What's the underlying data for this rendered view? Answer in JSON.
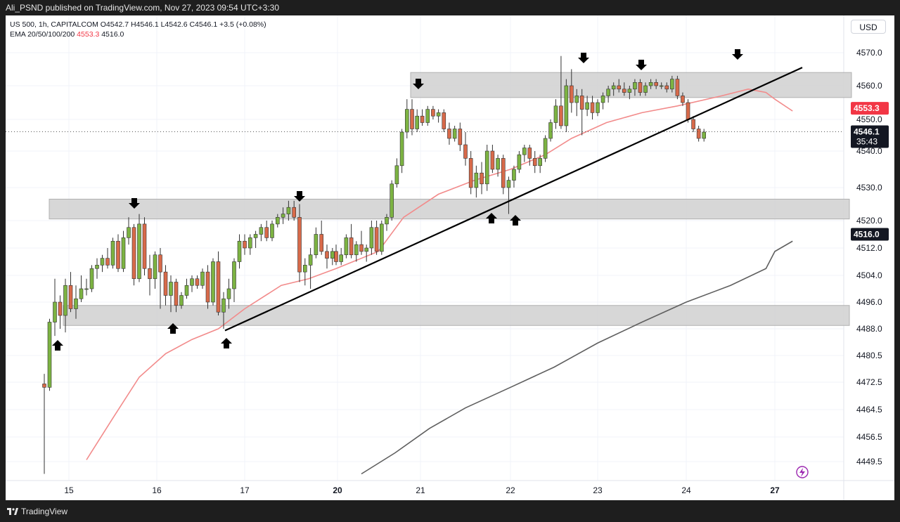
{
  "header": {
    "published": "Ali_PSND published on TradingView.com, Nov 27, 2023 09:54 UTC+3:30"
  },
  "legend": {
    "line1": "US 500, 1h, CAPITALCOM  O4542.7  H4546.1  L4542.6  C4546.1  +3.5 (+0.08%)",
    "ema_label": "EMA 20/50/100/200",
    "ema_value_1": "4553.3",
    "ema_value_2": "4516.0"
  },
  "currency_button": "USD",
  "footer": {
    "brand": "TradingView"
  },
  "colors": {
    "bull": "#7cb342",
    "bear": "#d86a4a",
    "ema_fast": "#f28b8b",
    "ema_slow": "#5f5f5f",
    "zone": "#d3d3d3",
    "price_tag": "#f23645"
  },
  "chart_data": {
    "type": "candlestick",
    "symbol": "US 500",
    "timeframe": "1h",
    "y_ticks": [
      "4570.0",
      "4560.0",
      "4550.0",
      "4540.0",
      "4530.0",
      "4520.0",
      "4512.0",
      "4504.0",
      "4496.0",
      "4488.0",
      "4480.5",
      "4472.5",
      "4464.5",
      "4456.5",
      "4449.5"
    ],
    "x_ticks": [
      "15",
      "16",
      "17",
      "20",
      "21",
      "22",
      "23",
      "24",
      "27"
    ],
    "ylim": [
      4446,
      4576
    ],
    "price_labels": [
      {
        "text": "4553.3",
        "value": 4553.3,
        "style": "red"
      },
      {
        "text": "4546.1",
        "value": 4546.1,
        "style": "dark",
        "sub": "35:43"
      },
      {
        "text": "4516.0",
        "value": 4516.0,
        "style": "dark"
      }
    ],
    "zones": [
      {
        "from": 4556.5,
        "to": 4564.0,
        "x_start": "20"
      },
      {
        "from": 4520.5,
        "to": 4526.5,
        "x_start": "15"
      },
      {
        "from": 4489.0,
        "to": 4495.0,
        "x_start": "15"
      }
    ],
    "trendline": {
      "from": [
        17,
        4487.5
      ],
      "to": [
        27.2,
        4565.5
      ]
    },
    "arrows_down": [
      [
        15.7,
        4522.5
      ],
      [
        17.6,
        4524.5
      ],
      [
        20.9,
        4557.5
      ],
      [
        22.8,
        4564.5
      ],
      [
        23.5,
        4562.0
      ],
      [
        24.6,
        4565.5
      ]
    ],
    "arrows_up": [
      [
        14.85,
        4486.5
      ],
      [
        16.2,
        4490.0
      ],
      [
        16.75,
        4487.0
      ],
      [
        21.8,
        4520.0
      ],
      [
        22.05,
        4519.5
      ]
    ],
    "ema_fast": [
      [
        15.2,
        4450
      ],
      [
        15.5,
        4462
      ],
      [
        15.8,
        4474
      ],
      [
        16.1,
        4481
      ],
      [
        16.4,
        4485
      ],
      [
        16.7,
        4488
      ],
      [
        17,
        4494
      ],
      [
        17.4,
        4501
      ],
      [
        17.7,
        4503
      ],
      [
        20,
        4506
      ],
      [
        20.5,
        4511
      ],
      [
        20.8,
        4521
      ],
      [
        21.2,
        4528
      ],
      [
        21.6,
        4532
      ],
      [
        22,
        4535
      ],
      [
        22.4,
        4539
      ],
      [
        22.7,
        4544
      ],
      [
        23.1,
        4549
      ],
      [
        23.5,
        4552
      ],
      [
        23.9,
        4554
      ],
      [
        24.4,
        4557
      ],
      [
        24.7,
        4559
      ],
      [
        24.9,
        4558
      ],
      [
        27,
        4556
      ],
      [
        27.2,
        4552.5
      ]
    ],
    "ema_slow": [
      [
        20.3,
        4446
      ],
      [
        20.7,
        4452
      ],
      [
        21.1,
        4459
      ],
      [
        21.5,
        4465
      ],
      [
        22,
        4471
      ],
      [
        22.5,
        4477
      ],
      [
        23,
        4484
      ],
      [
        23.5,
        4490
      ],
      [
        24,
        4496
      ],
      [
        24.5,
        4501
      ],
      [
        24.9,
        4506
      ],
      [
        27,
        4511
      ],
      [
        27.2,
        4514
      ]
    ],
    "candles": [
      {
        "x": 14.72,
        "o": 4472,
        "h": 4475,
        "l": 4446,
        "c": 4471
      },
      {
        "x": 14.78,
        "o": 4471,
        "h": 4491,
        "l": 4470,
        "c": 4490
      },
      {
        "x": 14.84,
        "o": 4490,
        "h": 4503,
        "l": 4486,
        "c": 4496
      },
      {
        "x": 14.9,
        "o": 4496,
        "h": 4498,
        "l": 4488,
        "c": 4492
      },
      {
        "x": 14.96,
        "o": 4492,
        "h": 4503,
        "l": 4487,
        "c": 4501
      },
      {
        "x": 15.02,
        "o": 4501,
        "h": 4505,
        "l": 4493,
        "c": 4494
      },
      {
        "x": 15.08,
        "o": 4494,
        "h": 4501,
        "l": 4491,
        "c": 4497
      },
      {
        "x": 15.14,
        "o": 4497,
        "h": 4504,
        "l": 4496,
        "c": 4500
      },
      {
        "x": 15.2,
        "o": 4500,
        "h": 4503,
        "l": 4498,
        "c": 4500
      },
      {
        "x": 15.26,
        "o": 4500,
        "h": 4507,
        "l": 4499,
        "c": 4506
      },
      {
        "x": 15.32,
        "o": 4506,
        "h": 4509,
        "l": 4503,
        "c": 4507
      },
      {
        "x": 15.38,
        "o": 4507,
        "h": 4510,
        "l": 4505,
        "c": 4509
      },
      {
        "x": 15.44,
        "o": 4509,
        "h": 4512,
        "l": 4506,
        "c": 4507
      },
      {
        "x": 15.5,
        "o": 4507,
        "h": 4515,
        "l": 4506,
        "c": 4514
      },
      {
        "x": 15.56,
        "o": 4514,
        "h": 4516,
        "l": 4505,
        "c": 4506
      },
      {
        "x": 15.62,
        "o": 4506,
        "h": 4517,
        "l": 4505,
        "c": 4515
      },
      {
        "x": 15.68,
        "o": 4515,
        "h": 4521,
        "l": 4513,
        "c": 4518
      },
      {
        "x": 15.74,
        "o": 4518,
        "h": 4519,
        "l": 4501,
        "c": 4503
      },
      {
        "x": 15.8,
        "o": 4503,
        "h": 4522,
        "l": 4502,
        "c": 4519
      },
      {
        "x": 15.86,
        "o": 4519,
        "h": 4521,
        "l": 4504,
        "c": 4506
      },
      {
        "x": 15.92,
        "o": 4506,
        "h": 4510,
        "l": 4498,
        "c": 4503
      },
      {
        "x": 15.98,
        "o": 4503,
        "h": 4511,
        "l": 4500,
        "c": 4510
      },
      {
        "x": 16.04,
        "o": 4510,
        "h": 4512,
        "l": 4494,
        "c": 4505
      },
      {
        "x": 16.1,
        "o": 4505,
        "h": 4507,
        "l": 4495,
        "c": 4498
      },
      {
        "x": 16.16,
        "o": 4498,
        "h": 4504,
        "l": 4493,
        "c": 4502
      },
      {
        "x": 16.22,
        "o": 4502,
        "h": 4503,
        "l": 4493,
        "c": 4495
      },
      {
        "x": 16.28,
        "o": 4495,
        "h": 4499,
        "l": 4494,
        "c": 4498
      },
      {
        "x": 16.34,
        "o": 4498,
        "h": 4503,
        "l": 4497,
        "c": 4501
      },
      {
        "x": 16.4,
        "o": 4501,
        "h": 4504,
        "l": 4499,
        "c": 4503
      },
      {
        "x": 16.46,
        "o": 4503,
        "h": 4504,
        "l": 4500,
        "c": 4501
      },
      {
        "x": 16.52,
        "o": 4501,
        "h": 4506,
        "l": 4500,
        "c": 4505
      },
      {
        "x": 16.58,
        "o": 4505,
        "h": 4507,
        "l": 4494,
        "c": 4496
      },
      {
        "x": 16.64,
        "o": 4496,
        "h": 4509,
        "l": 4495,
        "c": 4508
      },
      {
        "x": 16.7,
        "o": 4508,
        "h": 4511,
        "l": 4492,
        "c": 4493
      },
      {
        "x": 16.76,
        "o": 4493,
        "h": 4499,
        "l": 4488,
        "c": 4497
      },
      {
        "x": 16.82,
        "o": 4497,
        "h": 4503,
        "l": 4494,
        "c": 4500
      },
      {
        "x": 16.88,
        "o": 4500,
        "h": 4509,
        "l": 4496,
        "c": 4508
      },
      {
        "x": 16.94,
        "o": 4508,
        "h": 4516,
        "l": 4506,
        "c": 4514
      },
      {
        "x": 17,
        "o": 4514,
        "h": 4516,
        "l": 4510,
        "c": 4512
      },
      {
        "x": 17.06,
        "o": 4512,
        "h": 4516,
        "l": 4510,
        "c": 4515
      },
      {
        "x": 17.12,
        "o": 4515,
        "h": 4517,
        "l": 4512,
        "c": 4516
      },
      {
        "x": 17.18,
        "o": 4516,
        "h": 4519,
        "l": 4514,
        "c": 4518
      },
      {
        "x": 17.24,
        "o": 4518,
        "h": 4520,
        "l": 4514,
        "c": 4515
      },
      {
        "x": 17.3,
        "o": 4515,
        "h": 4520,
        "l": 4514,
        "c": 4519
      },
      {
        "x": 17.36,
        "o": 4519,
        "h": 4522,
        "l": 4518,
        "c": 4521
      },
      {
        "x": 17.42,
        "o": 4521,
        "h": 4524,
        "l": 4519,
        "c": 4522
      },
      {
        "x": 17.48,
        "o": 4522,
        "h": 4526,
        "l": 4520,
        "c": 4524
      },
      {
        "x": 17.54,
        "o": 4524,
        "h": 4526,
        "l": 4520,
        "c": 4521
      },
      {
        "x": 17.6,
        "o": 4521,
        "h": 4525,
        "l": 4502,
        "c": 4505
      },
      {
        "x": 17.66,
        "o": 4505,
        "h": 4509,
        "l": 4501,
        "c": 4507
      },
      {
        "x": 17.72,
        "o": 4507,
        "h": 4512,
        "l": 4500,
        "c": 4510
      },
      {
        "x": 17.78,
        "o": 4510,
        "h": 4518,
        "l": 4509,
        "c": 4516
      },
      {
        "x": 17.84,
        "o": 4516,
        "h": 4520,
        "l": 4510,
        "c": 4511
      },
      {
        "x": 17.9,
        "o": 4511,
        "h": 4513,
        "l": 4506,
        "c": 4509
      },
      {
        "x": 17.96,
        "o": 4509,
        "h": 4512,
        "l": 4507,
        "c": 4511
      },
      {
        "x": 20.0,
        "o": 4511,
        "h": 4513,
        "l": 4507,
        "c": 4508
      },
      {
        "x": 20.06,
        "o": 4508,
        "h": 4512,
        "l": 4507,
        "c": 4510
      },
      {
        "x": 20.12,
        "o": 4510,
        "h": 4516,
        "l": 4509,
        "c": 4515
      },
      {
        "x": 20.18,
        "o": 4515,
        "h": 4519,
        "l": 4509,
        "c": 4510
      },
      {
        "x": 20.24,
        "o": 4510,
        "h": 4514,
        "l": 4508,
        "c": 4513
      },
      {
        "x": 20.3,
        "o": 4513,
        "h": 4517,
        "l": 4510,
        "c": 4511
      },
      {
        "x": 20.36,
        "o": 4511,
        "h": 4513,
        "l": 4508,
        "c": 4512
      },
      {
        "x": 20.42,
        "o": 4512,
        "h": 4520,
        "l": 4510,
        "c": 4518
      },
      {
        "x": 20.48,
        "o": 4518,
        "h": 4520,
        "l": 4510,
        "c": 4511
      },
      {
        "x": 20.54,
        "o": 4511,
        "h": 4520,
        "l": 4510,
        "c": 4519
      },
      {
        "x": 20.6,
        "o": 4519,
        "h": 4522,
        "l": 4517,
        "c": 4521
      },
      {
        "x": 20.66,
        "o": 4521,
        "h": 4532,
        "l": 4520,
        "c": 4531
      },
      {
        "x": 20.72,
        "o": 4531,
        "h": 4538,
        "l": 4530,
        "c": 4536
      },
      {
        "x": 20.78,
        "o": 4536,
        "h": 4547,
        "l": 4534,
        "c": 4546
      },
      {
        "x": 20.84,
        "o": 4546,
        "h": 4556,
        "l": 4544,
        "c": 4553
      },
      {
        "x": 20.9,
        "o": 4553,
        "h": 4556,
        "l": 4545,
        "c": 4547
      },
      {
        "x": 20.96,
        "o": 4547,
        "h": 4553,
        "l": 4546,
        "c": 4551
      },
      {
        "x": 21.02,
        "o": 4551,
        "h": 4553,
        "l": 4548,
        "c": 4549
      },
      {
        "x": 21.08,
        "o": 4549,
        "h": 4554,
        "l": 4548,
        "c": 4553
      },
      {
        "x": 21.14,
        "o": 4553,
        "h": 4554,
        "l": 4550,
        "c": 4551
      },
      {
        "x": 21.2,
        "o": 4551,
        "h": 4553,
        "l": 4549,
        "c": 4552
      },
      {
        "x": 21.26,
        "o": 4552,
        "h": 4553,
        "l": 4546,
        "c": 4547
      },
      {
        "x": 21.32,
        "o": 4547,
        "h": 4549,
        "l": 4542,
        "c": 4544
      },
      {
        "x": 21.38,
        "o": 4544,
        "h": 4548,
        "l": 4543,
        "c": 4547
      },
      {
        "x": 21.44,
        "o": 4547,
        "h": 4549,
        "l": 4540,
        "c": 4542
      },
      {
        "x": 21.5,
        "o": 4542,
        "h": 4546,
        "l": 4536,
        "c": 4538
      },
      {
        "x": 21.56,
        "o": 4538,
        "h": 4540,
        "l": 4528,
        "c": 4530
      },
      {
        "x": 21.62,
        "o": 4530,
        "h": 4536,
        "l": 4527,
        "c": 4534
      },
      {
        "x": 21.68,
        "o": 4534,
        "h": 4537,
        "l": 4528,
        "c": 4531
      },
      {
        "x": 21.74,
        "o": 4531,
        "h": 4542,
        "l": 4529,
        "c": 4540
      },
      {
        "x": 21.8,
        "o": 4540,
        "h": 4542,
        "l": 4534,
        "c": 4535
      },
      {
        "x": 21.86,
        "o": 4535,
        "h": 4539,
        "l": 4533,
        "c": 4538
      },
      {
        "x": 21.92,
        "o": 4538,
        "h": 4539,
        "l": 4528,
        "c": 4530
      },
      {
        "x": 21.98,
        "o": 4530,
        "h": 4533,
        "l": 4522,
        "c": 4532
      },
      {
        "x": 22.04,
        "o": 4532,
        "h": 4536,
        "l": 4530,
        "c": 4535
      },
      {
        "x": 22.1,
        "o": 4535,
        "h": 4540,
        "l": 4534,
        "c": 4539
      },
      {
        "x": 22.16,
        "o": 4539,
        "h": 4542,
        "l": 4537,
        "c": 4541
      },
      {
        "x": 22.22,
        "o": 4541,
        "h": 4542,
        "l": 4536,
        "c": 4538
      },
      {
        "x": 22.28,
        "o": 4538,
        "h": 4540,
        "l": 4534,
        "c": 4536
      },
      {
        "x": 22.34,
        "o": 4536,
        "h": 4539,
        "l": 4534,
        "c": 4538
      },
      {
        "x": 22.4,
        "o": 4538,
        "h": 4545,
        "l": 4537,
        "c": 4544
      },
      {
        "x": 22.46,
        "o": 4544,
        "h": 4550,
        "l": 4543,
        "c": 4549
      },
      {
        "x": 22.52,
        "o": 4549,
        "h": 4556,
        "l": 4547,
        "c": 4554
      },
      {
        "x": 22.58,
        "o": 4554,
        "h": 4569,
        "l": 4547,
        "c": 4548
      },
      {
        "x": 22.64,
        "o": 4548,
        "h": 4562,
        "l": 4546,
        "c": 4560
      },
      {
        "x": 22.7,
        "o": 4560,
        "h": 4565,
        "l": 4552,
        "c": 4555
      },
      {
        "x": 22.76,
        "o": 4555,
        "h": 4559,
        "l": 4551,
        "c": 4557
      },
      {
        "x": 22.82,
        "o": 4557,
        "h": 4559,
        "l": 4545,
        "c": 4553
      },
      {
        "x": 22.88,
        "o": 4553,
        "h": 4557,
        "l": 4551,
        "c": 4555
      },
      {
        "x": 22.94,
        "o": 4555,
        "h": 4557,
        "l": 4550,
        "c": 4552
      },
      {
        "x": 23.0,
        "o": 4552,
        "h": 4556,
        "l": 4551,
        "c": 4555
      },
      {
        "x": 23.06,
        "o": 4555,
        "h": 4558,
        "l": 4553,
        "c": 4557
      },
      {
        "x": 23.12,
        "o": 4557,
        "h": 4560,
        "l": 4555,
        "c": 4559
      },
      {
        "x": 23.18,
        "o": 4559,
        "h": 4561,
        "l": 4557,
        "c": 4560
      },
      {
        "x": 23.24,
        "o": 4560,
        "h": 4562,
        "l": 4558,
        "c": 4559
      },
      {
        "x": 23.3,
        "o": 4559,
        "h": 4561,
        "l": 4557,
        "c": 4558
      },
      {
        "x": 23.36,
        "o": 4558,
        "h": 4560,
        "l": 4556,
        "c": 4559
      },
      {
        "x": 23.42,
        "o": 4559,
        "h": 4562,
        "l": 4557,
        "c": 4561
      },
      {
        "x": 23.48,
        "o": 4561,
        "h": 4562,
        "l": 4557,
        "c": 4558
      },
      {
        "x": 23.54,
        "o": 4558,
        "h": 4561,
        "l": 4557,
        "c": 4560
      },
      {
        "x": 23.6,
        "o": 4560,
        "h": 4562,
        "l": 4559,
        "c": 4561
      },
      {
        "x": 23.66,
        "o": 4561,
        "h": 4562,
        "l": 4559,
        "c": 4560
      },
      {
        "x": 23.72,
        "o": 4560,
        "h": 4561,
        "l": 4559,
        "c": 4560
      },
      {
        "x": 23.78,
        "o": 4560,
        "h": 4561,
        "l": 4558,
        "c": 4559
      },
      {
        "x": 23.84,
        "o": 4559,
        "h": 4563,
        "l": 4558,
        "c": 4562
      },
      {
        "x": 23.9,
        "o": 4562,
        "h": 4563,
        "l": 4556,
        "c": 4557
      },
      {
        "x": 23.96,
        "o": 4557,
        "h": 4558,
        "l": 4554,
        "c": 4555
      },
      {
        "x": 24.02,
        "o": 4555,
        "h": 4556,
        "l": 4549,
        "c": 4550
      },
      {
        "x": 24.08,
        "o": 4550,
        "h": 4551,
        "l": 4546,
        "c": 4547
      },
      {
        "x": 24.14,
        "o": 4547,
        "h": 4548,
        "l": 4543,
        "c": 4544
      },
      {
        "x": 24.2,
        "o": 4544,
        "h": 4547,
        "l": 4543,
        "c": 4546
      }
    ]
  }
}
